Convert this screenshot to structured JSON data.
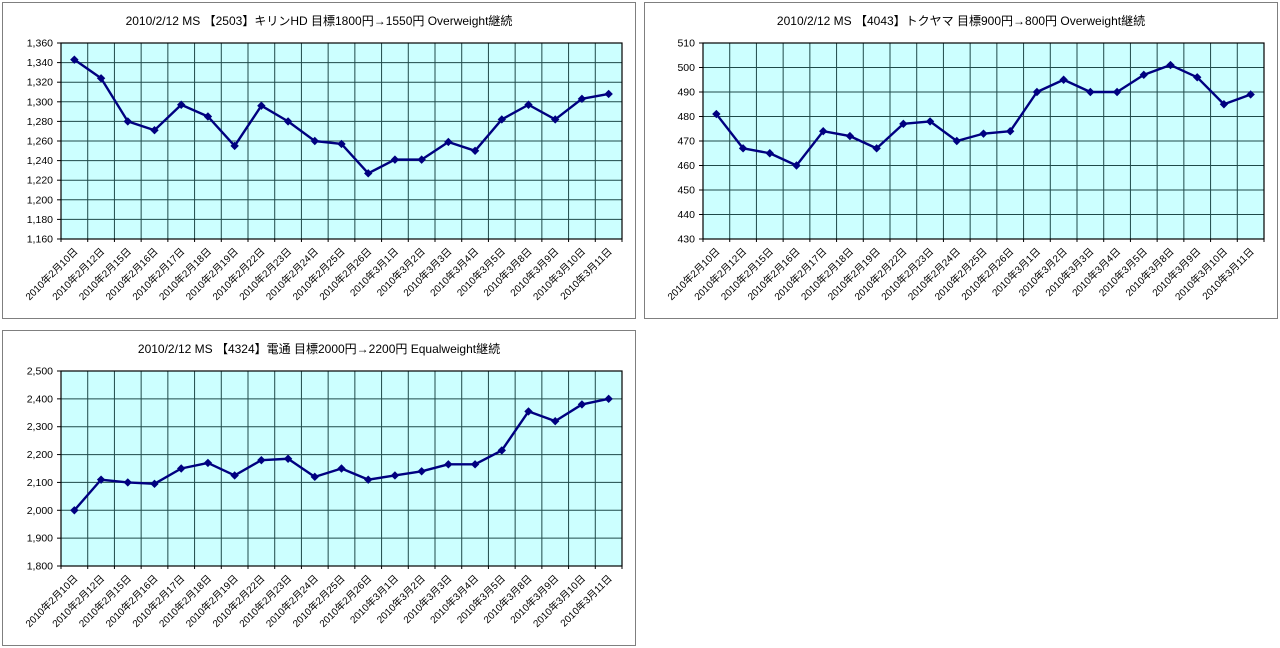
{
  "page": {
    "background": "#ffffff"
  },
  "colors": {
    "plot_bg": "#ccffff",
    "grid": "#1f4a4a",
    "axis": "#000000",
    "text": "#000000",
    "series": "#000080",
    "panel_border": "#7f7f7f"
  },
  "chart_data": [
    {
      "type": "line",
      "title": "2010/2/12 MS 【2503】キリンHD 目標1800円→1550円 Overweight継続",
      "marker": "diamond",
      "grid": true,
      "legend": "none",
      "ylim": [
        1160,
        1360
      ],
      "ytick_step": 20,
      "categories": [
        "2010年2月10日",
        "2010年2月12日",
        "2010年2月15日",
        "2010年2月16日",
        "2010年2月17日",
        "2010年2月18日",
        "2010年2月19日",
        "2010年2月22日",
        "2010年2月23日",
        "2010年2月24日",
        "2010年2月25日",
        "2010年2月26日",
        "2010年3月1日",
        "2010年3月2日",
        "2010年3月3日",
        "2010年3月4日",
        "2010年3月5日",
        "2010年3月8日",
        "2010年3月9日",
        "2010年3月10日",
        "2010年3月11日"
      ],
      "values": [
        1343,
        1324,
        1280,
        1271,
        1297,
        1285,
        1255,
        1296,
        1280,
        1260,
        1257,
        1227,
        1241,
        1241,
        1259,
        1250,
        1282,
        1297,
        1282,
        1303,
        1308
      ]
    },
    {
      "type": "line",
      "title": "2010/2/12 MS 【4043】トクヤマ 目標900円→800円 Overweight継続",
      "marker": "diamond",
      "grid": true,
      "legend": "none",
      "ylim": [
        430,
        510
      ],
      "ytick_step": 10,
      "categories": [
        "2010年2月10日",
        "2010年2月12日",
        "2010年2月15日",
        "2010年2月16日",
        "2010年2月17日",
        "2010年2月18日",
        "2010年2月19日",
        "2010年2月22日",
        "2010年2月23日",
        "2010年2月24日",
        "2010年2月25日",
        "2010年2月26日",
        "2010年3月1日",
        "2010年3月2日",
        "2010年3月3日",
        "2010年3月4日",
        "2010年3月5日",
        "2010年3月8日",
        "2010年3月9日",
        "2010年3月10日",
        "2010年3月11日"
      ],
      "values": [
        481,
        467,
        465,
        460,
        474,
        472,
        467,
        477,
        478,
        470,
        473,
        474,
        490,
        495,
        490,
        490,
        497,
        501,
        496,
        485,
        489
      ]
    },
    {
      "type": "line",
      "title": "2010/2/12 MS 【4324】電通 目標2000円→2200円 Equalweight継続",
      "marker": "diamond",
      "grid": true,
      "legend": "none",
      "ylim": [
        1800,
        2500
      ],
      "ytick_step": 100,
      "categories": [
        "2010年2月10日",
        "2010年2月12日",
        "2010年2月15日",
        "2010年2月16日",
        "2010年2月17日",
        "2010年2月18日",
        "2010年2月19日",
        "2010年2月22日",
        "2010年2月23日",
        "2010年2月24日",
        "2010年2月25日",
        "2010年2月26日",
        "2010年3月1日",
        "2010年3月2日",
        "2010年3月3日",
        "2010年3月4日",
        "2010年3月5日",
        "2010年3月8日",
        "2010年3月9日",
        "2010年3月10日",
        "2010年3月11日"
      ],
      "values": [
        2000,
        2110,
        2100,
        2095,
        2150,
        2170,
        2125,
        2180,
        2185,
        2120,
        2150,
        2110,
        2125,
        2140,
        2165,
        2165,
        2215,
        2355,
        2320,
        2380,
        2400
      ]
    }
  ]
}
